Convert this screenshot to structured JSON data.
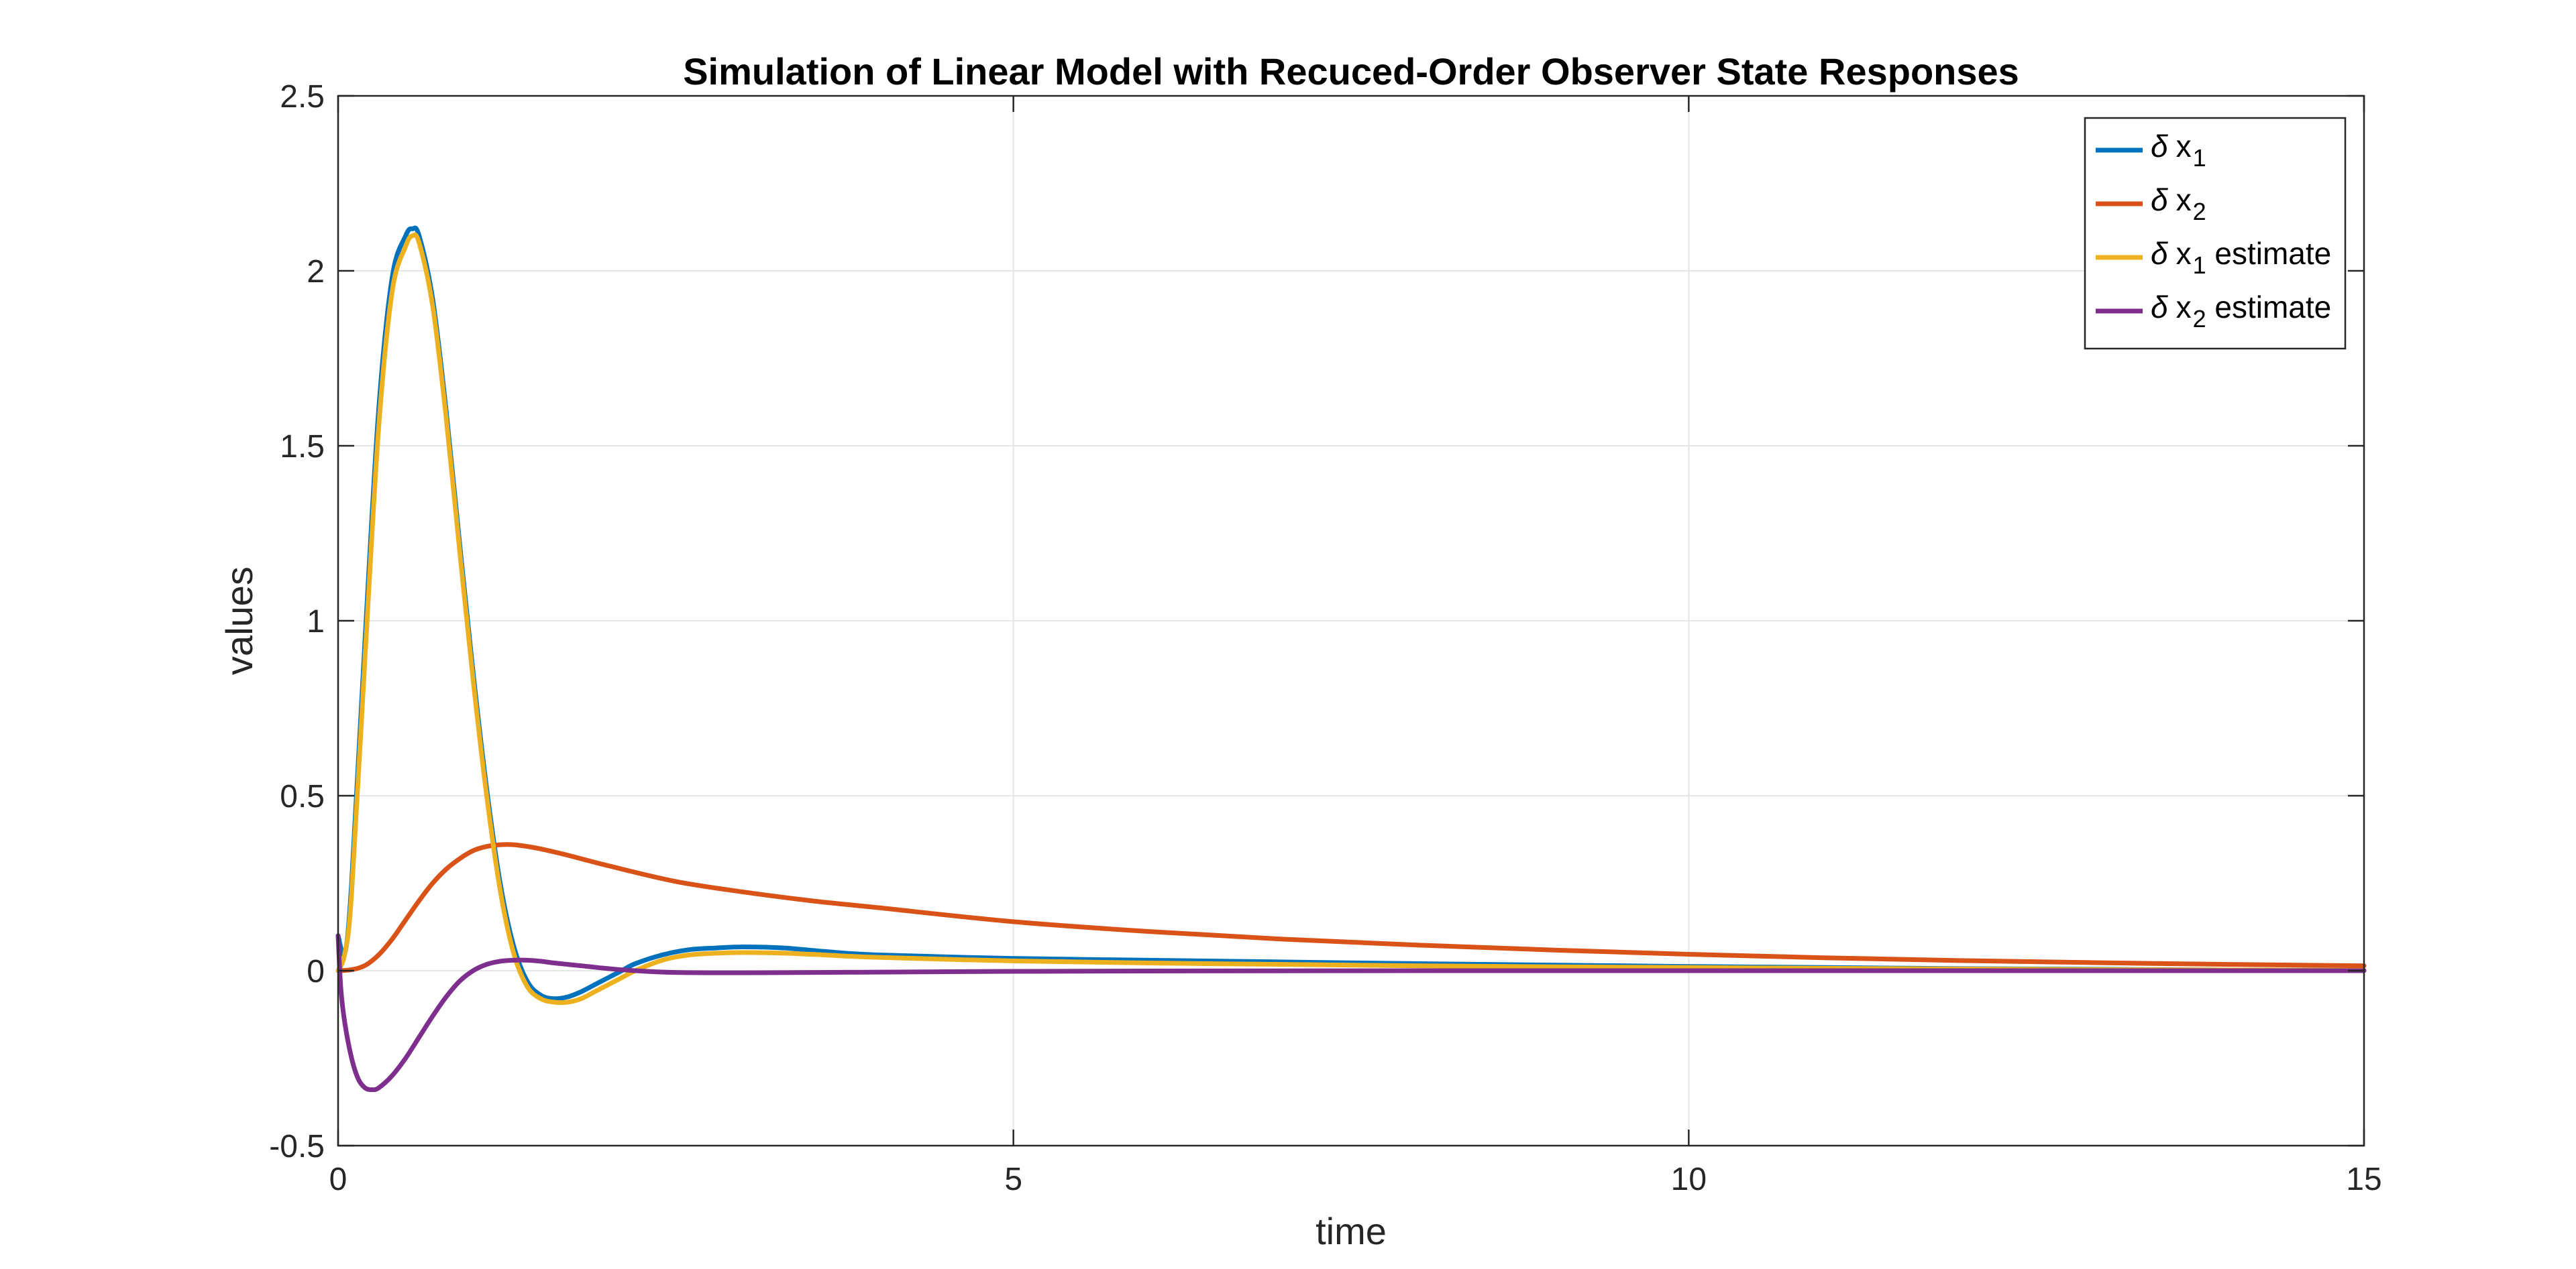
{
  "chart_data": {
    "type": "line",
    "title": "Simulation of Linear Model with Recuced-Order Observer State Responses",
    "xlabel": "time",
    "ylabel": "values",
    "xlim": [
      0,
      15
    ],
    "ylim": [
      -0.5,
      2.5
    ],
    "xticks": [
      0,
      5,
      10,
      15
    ],
    "yticks": [
      -0.5,
      0,
      0.5,
      1,
      1.5,
      2,
      2.5
    ],
    "xtick_labels": [
      "0",
      "5",
      "10",
      "15"
    ],
    "ytick_labels": [
      "-0.5",
      "0",
      "0.5",
      "1",
      "1.5",
      "2",
      "2.5"
    ],
    "grid": true,
    "legend_position": "top-right",
    "series": [
      {
        "name_symbol": "δ",
        "name_base": "x",
        "name_sub": "1",
        "name_suffix": "",
        "color": "#0072BD",
        "x": [
          0,
          0.05,
          0.1,
          0.2,
          0.3,
          0.4,
          0.5,
          0.55,
          0.6,
          0.7,
          0.8,
          0.9,
          1.0,
          1.1,
          1.2,
          1.3,
          1.4,
          1.5,
          1.6,
          1.7,
          1.8,
          1.9,
          2.0,
          2.1,
          2.2,
          2.4,
          2.6,
          2.8,
          3.0,
          3.3,
          3.6,
          4.0,
          5.0,
          6.0,
          7.0,
          8.0,
          9.0,
          10.0,
          11.0,
          12.0,
          13.0,
          14.0,
          15.0
        ],
        "y": [
          0.1,
          0.05,
          0.25,
          0.95,
          1.6,
          1.98,
          2.1,
          2.12,
          2.1,
          1.92,
          1.6,
          1.22,
          0.85,
          0.52,
          0.25,
          0.07,
          -0.03,
          -0.07,
          -0.08,
          -0.075,
          -0.06,
          -0.04,
          -0.02,
          0.0,
          0.02,
          0.045,
          0.06,
          0.065,
          0.068,
          0.065,
          0.055,
          0.045,
          0.035,
          0.03,
          0.025,
          0.02,
          0.016,
          0.012,
          0.009,
          0.006,
          0.004,
          0.002,
          0.001
        ]
      },
      {
        "name_symbol": "δ",
        "name_base": "x",
        "name_sub": "2",
        "name_suffix": "",
        "color": "#D95319",
        "x": [
          0,
          0.1,
          0.2,
          0.3,
          0.4,
          0.5,
          0.6,
          0.7,
          0.8,
          0.9,
          1.0,
          1.1,
          1.2,
          1.3,
          1.4,
          1.5,
          1.7,
          2.0,
          2.5,
          3.0,
          3.5,
          4.0,
          5.0,
          6.0,
          7.0,
          8.0,
          9.0,
          10.0,
          11.0,
          12.0,
          13.0,
          14.0,
          15.0
        ],
        "y": [
          0.0,
          0.003,
          0.015,
          0.045,
          0.09,
          0.145,
          0.2,
          0.25,
          0.29,
          0.32,
          0.343,
          0.355,
          0.36,
          0.36,
          0.355,
          0.348,
          0.33,
          0.3,
          0.255,
          0.225,
          0.2,
          0.18,
          0.14,
          0.112,
          0.09,
          0.073,
          0.059,
          0.047,
          0.037,
          0.029,
          0.023,
          0.018,
          0.014
        ]
      },
      {
        "name_symbol": "δ",
        "name_base": "x",
        "name_sub": "1",
        "name_suffix": " estimate",
        "color": "#EDB120",
        "x": [
          0,
          0.05,
          0.1,
          0.2,
          0.3,
          0.4,
          0.5,
          0.55,
          0.6,
          0.7,
          0.8,
          0.9,
          1.0,
          1.1,
          1.2,
          1.3,
          1.4,
          1.5,
          1.6,
          1.7,
          1.8,
          1.9,
          2.0,
          2.1,
          2.2,
          2.4,
          2.6,
          2.8,
          3.0,
          3.3,
          3.6,
          4.0,
          5.0,
          6.0,
          7.0,
          8.0,
          9.0,
          10.0,
          11.0,
          12.0,
          13.0,
          14.0,
          15.0
        ],
        "y": [
          0.0,
          0.05,
          0.22,
          0.9,
          1.55,
          1.94,
          2.07,
          2.1,
          2.08,
          1.9,
          1.58,
          1.2,
          0.83,
          0.5,
          0.23,
          0.05,
          -0.045,
          -0.08,
          -0.09,
          -0.09,
          -0.08,
          -0.06,
          -0.04,
          -0.02,
          0.0,
          0.03,
          0.045,
          0.05,
          0.052,
          0.05,
          0.045,
          0.038,
          0.028,
          0.022,
          0.018,
          0.014,
          0.011,
          0.009,
          0.007,
          0.005,
          0.003,
          0.002,
          0.001
        ]
      },
      {
        "name_symbol": "δ",
        "name_base": "x",
        "name_sub": "2",
        "name_suffix": " estimate",
        "color": "#7E2F8E",
        "x": [
          0,
          0.02,
          0.05,
          0.1,
          0.15,
          0.2,
          0.25,
          0.3,
          0.4,
          0.5,
          0.6,
          0.7,
          0.8,
          0.9,
          1.0,
          1.1,
          1.2,
          1.3,
          1.4,
          1.5,
          1.6,
          1.7,
          1.8,
          2.0,
          2.2,
          2.5,
          3.0,
          4.0,
          5.0,
          6.0,
          8.0,
          10.0,
          12.0,
          15.0
        ],
        "y": [
          0.1,
          -0.05,
          -0.15,
          -0.25,
          -0.31,
          -0.335,
          -0.34,
          -0.335,
          -0.3,
          -0.25,
          -0.19,
          -0.13,
          -0.075,
          -0.03,
          0.0,
          0.018,
          0.027,
          0.03,
          0.03,
          0.027,
          0.022,
          0.018,
          0.014,
          0.006,
          0.0,
          -0.005,
          -0.006,
          -0.004,
          -0.002,
          -0.001,
          0.0,
          0.0,
          0.0,
          0.0
        ]
      }
    ]
  }
}
